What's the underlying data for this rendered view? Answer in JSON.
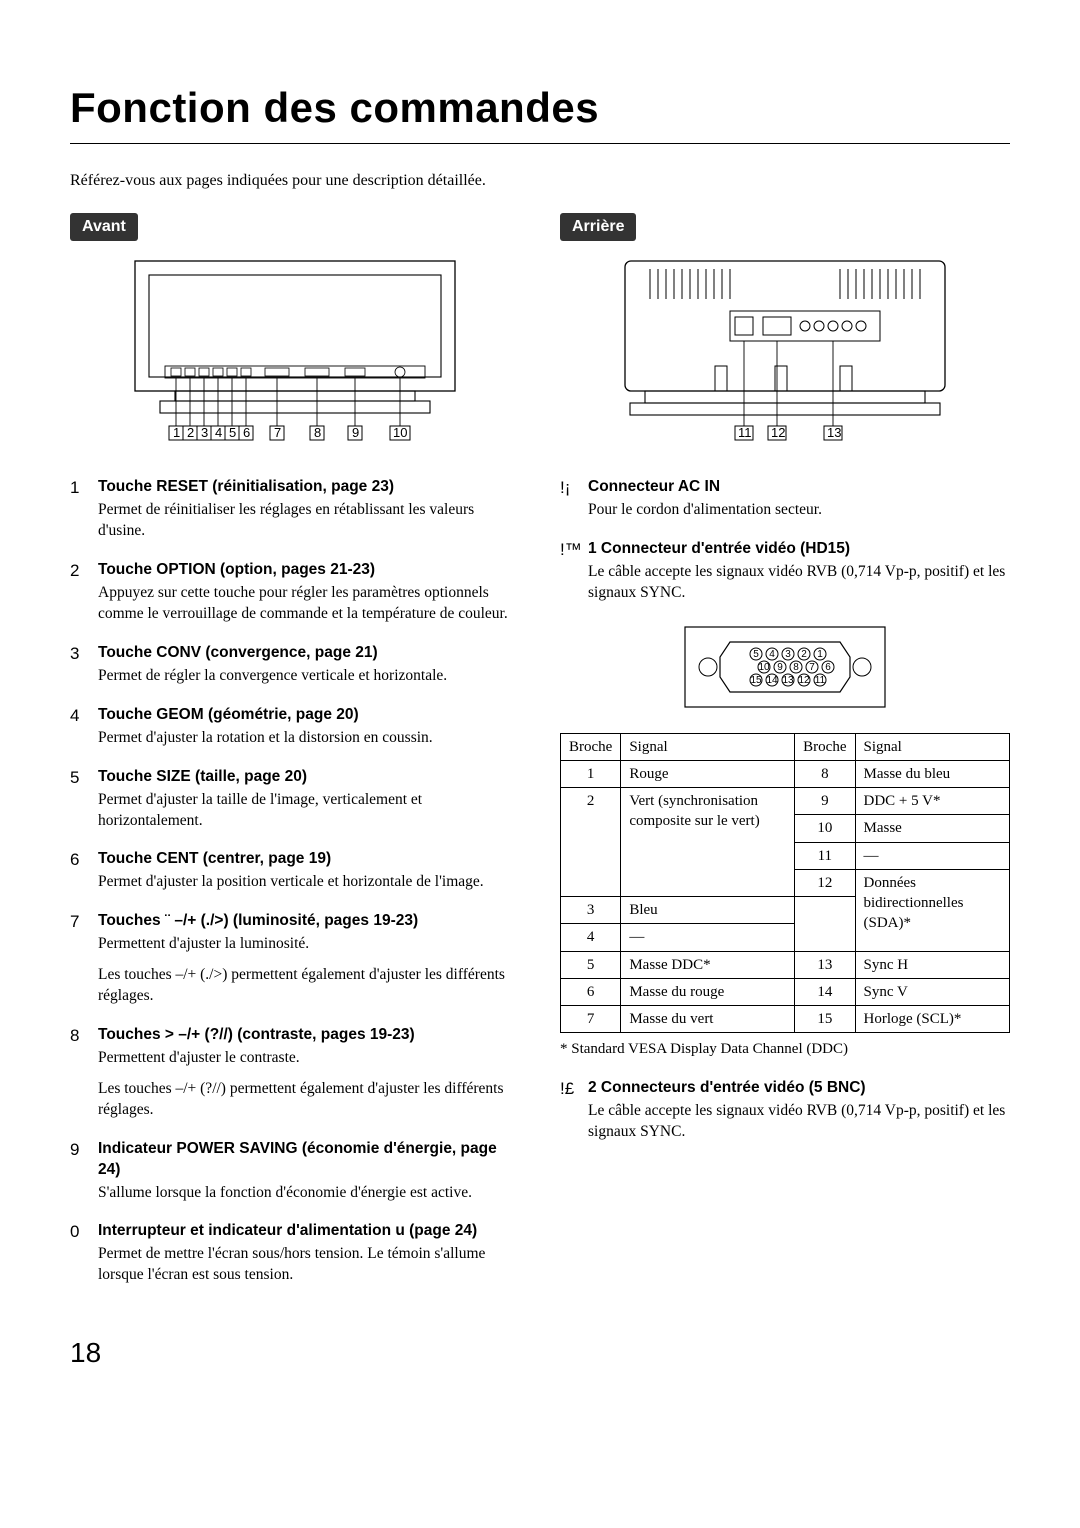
{
  "title": "Fonction des commandes",
  "intro": "Référez-vous aux pages indiquées pour une description détaillée.",
  "page_number": "18",
  "front": {
    "label": "Avant",
    "callouts": "1 2 3 4 5 6    7     8    9   10",
    "items": [
      {
        "num": "1",
        "title": "Touche RESET (réinitialisation, page 23)",
        "desc": "Permet de réinitialiser les réglages en rétablissant les valeurs d'usine."
      },
      {
        "num": "2",
        "title": "Touche OPTION (option, pages 21-23)",
        "desc": "Appuyez sur cette touche pour régler les paramètres optionnels comme le verrouillage de commande et la température de couleur."
      },
      {
        "num": "3",
        "title": "Touche CONV (convergence, page 21)",
        "desc": "Permet de régler la convergence verticale et horizontale."
      },
      {
        "num": "4",
        "title": "Touche GEOM (géométrie, page 20)",
        "desc": "Permet d'ajuster la rotation et la distorsion en coussin."
      },
      {
        "num": "5",
        "title": "Touche SIZE (taille, page 20)",
        "desc": "Permet d'ajuster la taille de l'image, verticalement et horizontalement."
      },
      {
        "num": "6",
        "title": "Touche CENT (centrer, page 19)",
        "desc": "Permet d'ajuster la position verticale et horizontale de l'image."
      },
      {
        "num": "7",
        "title": "Touches ¨ –/+ (./>) (luminosité, pages 19-23)",
        "desc": "Permettent d'ajuster la luminosité.",
        "desc2": "Les touches –/+ (./>) permettent également d'ajuster les différents réglages."
      },
      {
        "num": "8",
        "title": "Touches > –/+ (?//) (contraste, pages 19-23)",
        "desc": "Permettent d'ajuster le contraste.",
        "desc2": "Les touches –/+ (?//) permettent également d'ajuster les différents réglages."
      },
      {
        "num": "9",
        "title": "Indicateur POWER SAVING (économie d'énergie, page 24)",
        "desc": "S'allume lorsque la fonction d'économie d'énergie est active."
      },
      {
        "num": "0",
        "title": "Interrupteur et indicateur d'alimentation u (page 24)",
        "desc": "Permet de mettre l'écran sous/hors tension. Le témoin s'allume lorsque l'écran est sous tension."
      }
    ]
  },
  "rear": {
    "label": "Arrière",
    "callouts": "11 12        13",
    "items": [
      {
        "num": "!¡",
        "title": "Connecteur AC IN",
        "desc": "Pour le cordon d'alimentation secteur."
      },
      {
        "num": "!™",
        "title": "1 Connecteur d'entrée vidéo (HD15)",
        "desc": "Le câble accepte les signaux vidéo RVB (0,714 Vp-p, positif) et les signaux SYNC."
      },
      {
        "num": "!£",
        "title": "2 Connecteurs d'entrée vidéo (5 BNC)",
        "desc": "Le câble accepte les signaux vidéo RVB (0,714 Vp-p, positif) et les signaux SYNC."
      }
    ],
    "pin_header": [
      "Broche",
      "Signal",
      "Broche",
      "Signal"
    ],
    "pins_left": [
      {
        "n": "1",
        "s": "Rouge"
      },
      {
        "n": "2",
        "s": "Vert (synchronisation composite sur le vert)"
      },
      {
        "n": "3",
        "s": "Bleu"
      },
      {
        "n": "4",
        "s": "—"
      },
      {
        "n": "5",
        "s": "Masse DDC*"
      },
      {
        "n": "6",
        "s": "Masse du rouge"
      },
      {
        "n": "7",
        "s": "Masse du vert"
      }
    ],
    "pins_right": [
      {
        "n": "8",
        "s": "Masse du bleu"
      },
      {
        "n": "9",
        "s": "DDC + 5 V*"
      },
      {
        "n": "10",
        "s": "Masse"
      },
      {
        "n": "11",
        "s": "—"
      },
      {
        "n": "12",
        "s": "Données bidirectionnelles (SDA)*"
      },
      {
        "n": "13",
        "s": "Sync H"
      },
      {
        "n": "14",
        "s": "Sync V"
      },
      {
        "n": "15",
        "s": "Horloge (SCL)*"
      }
    ],
    "footnote": "* Standard VESA Display Data Channel (DDC)"
  }
}
